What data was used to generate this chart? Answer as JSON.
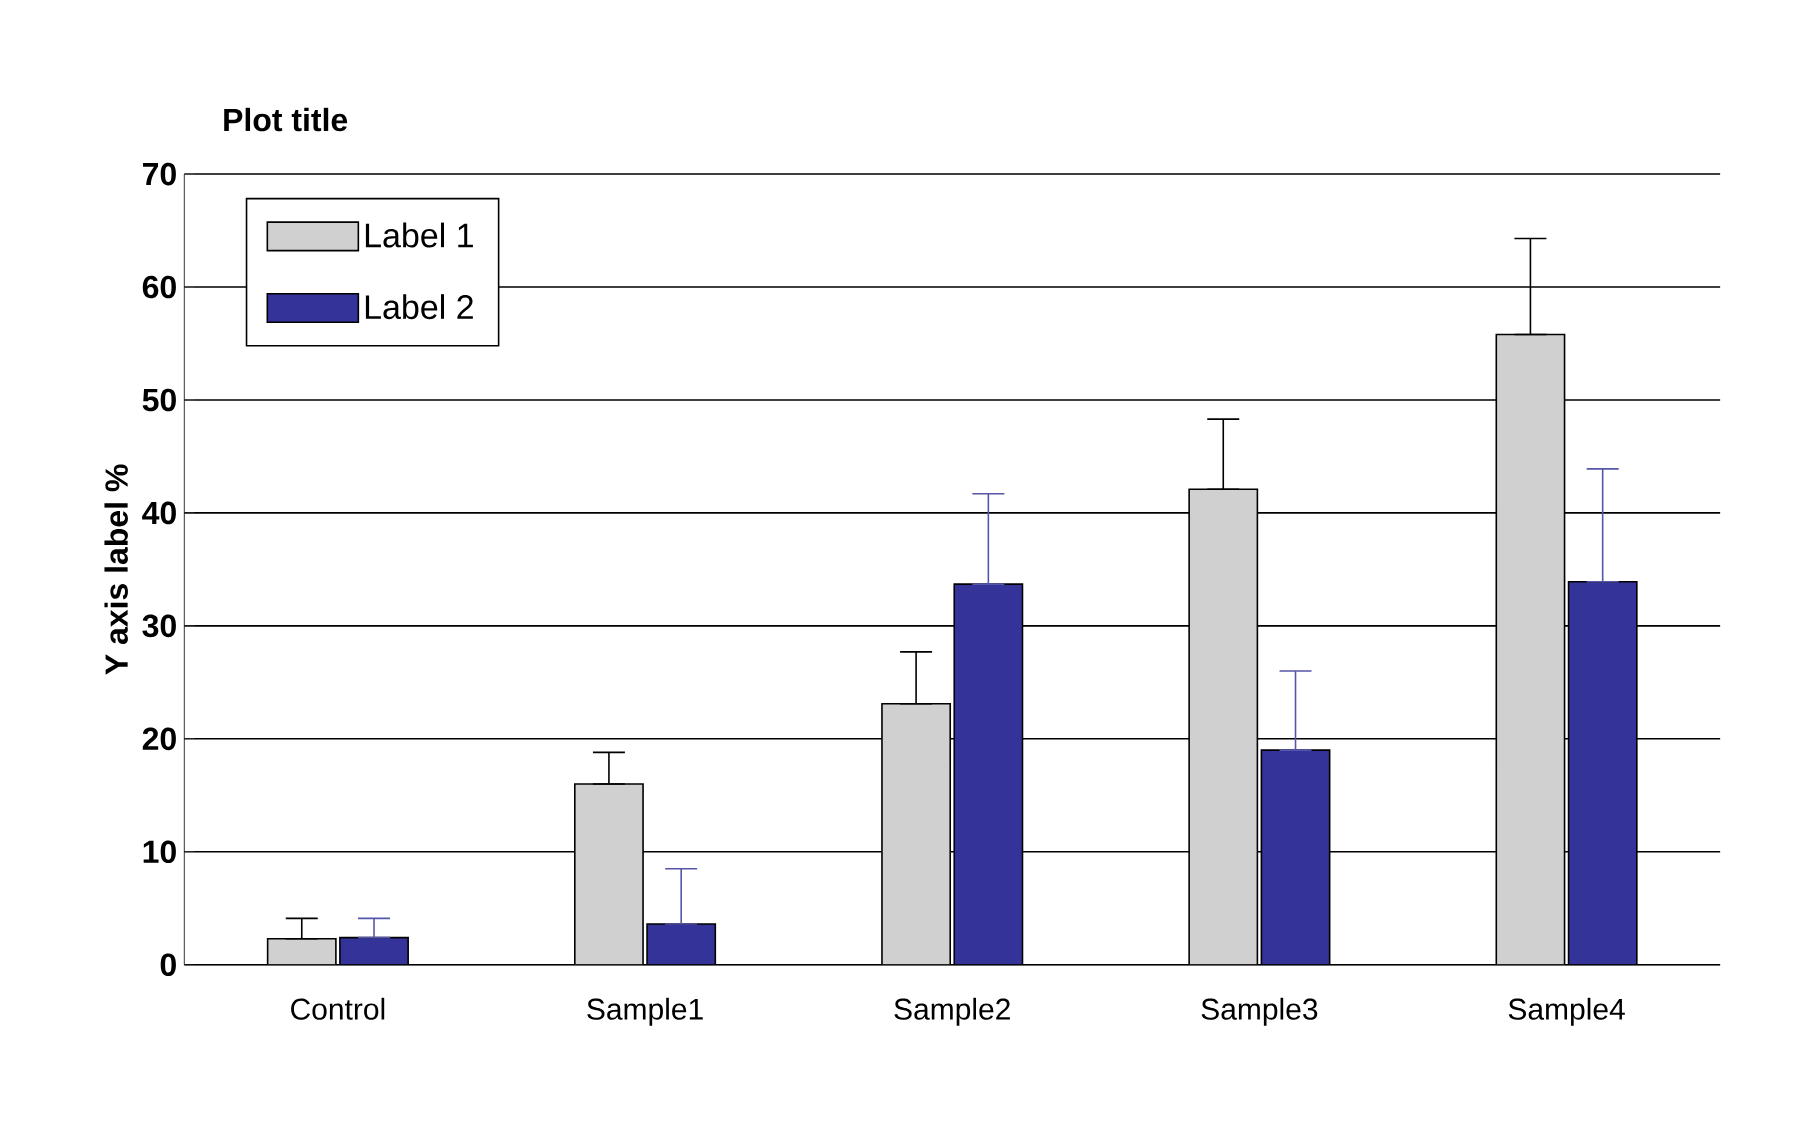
{
  "chart_data": {
    "type": "bar",
    "title": "Plot title",
    "ylabel": "Y axis label %",
    "categories": [
      "Control",
      "Sample1",
      "Sample2",
      "Sample3",
      "Sample4"
    ],
    "series": [
      {
        "name": "Label 1",
        "color": "#d0d0d0",
        "values": [
          2.3,
          16,
          23.1,
          42.1,
          55.8
        ],
        "errors": [
          [
            2.3,
            4.1
          ],
          [
            16,
            18.8
          ],
          [
            23.1,
            27.7
          ],
          [
            42.1,
            48.3
          ],
          [
            55.8,
            64.3
          ]
        ]
      },
      {
        "name": "Label 2",
        "color": "#333399",
        "values": [
          2.4,
          3.6,
          33.7,
          19,
          33.9
        ],
        "errors": [
          [
            2.4,
            4.1
          ],
          [
            3.6,
            8.5
          ],
          [
            33.7,
            41.7
          ],
          [
            19,
            26
          ],
          [
            33.9,
            43.9
          ]
        ]
      }
    ],
    "ylim": [
      0,
      70
    ],
    "yticks": [
      0,
      10,
      20,
      30,
      40,
      50,
      60,
      70
    ],
    "grid": "y",
    "legend": "top left"
  }
}
